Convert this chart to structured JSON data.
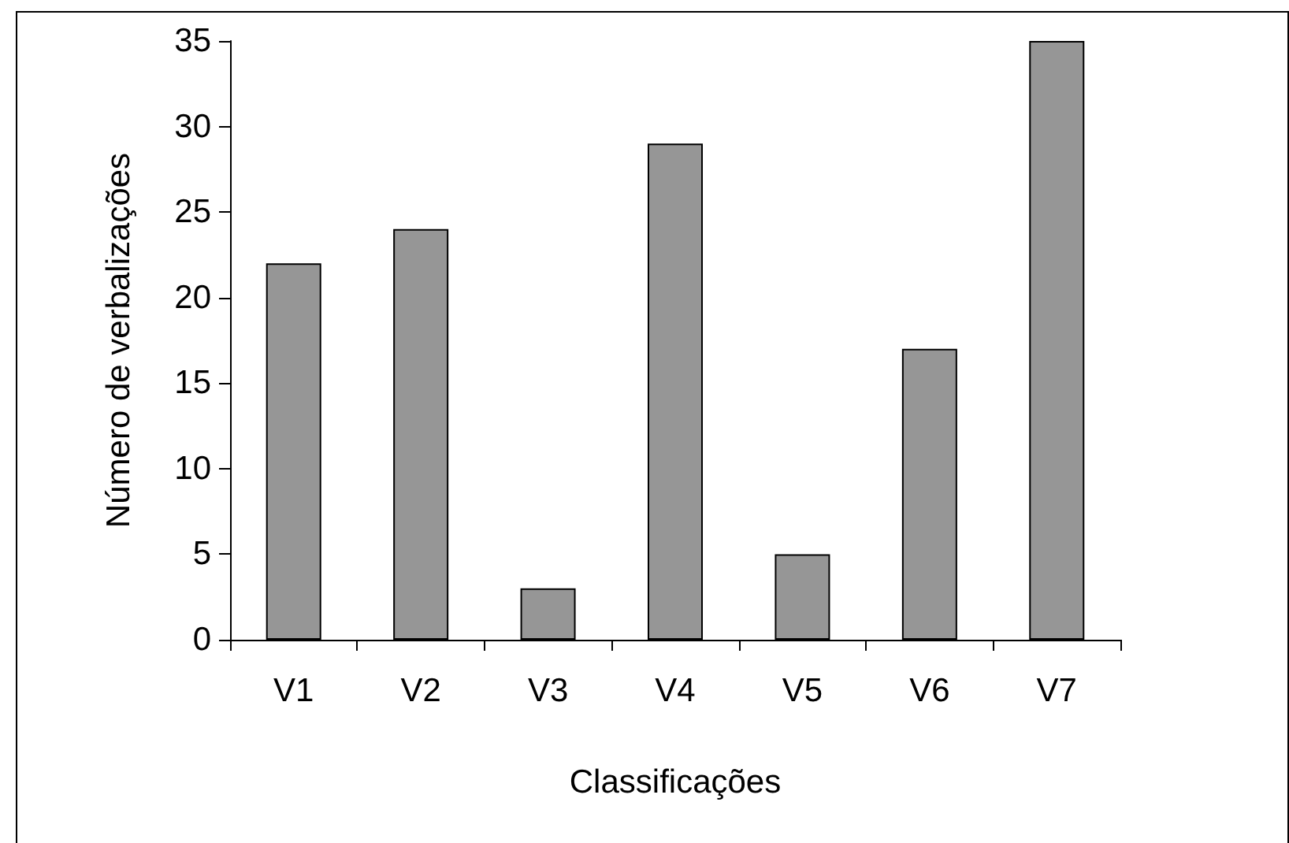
{
  "chart_data": {
    "type": "bar",
    "xlabel": "Classificações",
    "ylabel": "Número de verbalizações",
    "categories": [
      "V1",
      "V2",
      "V3",
      "V4",
      "V5",
      "V6",
      "V7"
    ],
    "values": [
      22,
      24,
      3,
      29,
      5,
      17,
      35
    ],
    "color": "#969696",
    "ylim": [
      0,
      35
    ],
    "yticks": [
      0,
      5,
      10,
      15,
      20,
      25,
      30,
      35
    ],
    "grid": false
  }
}
